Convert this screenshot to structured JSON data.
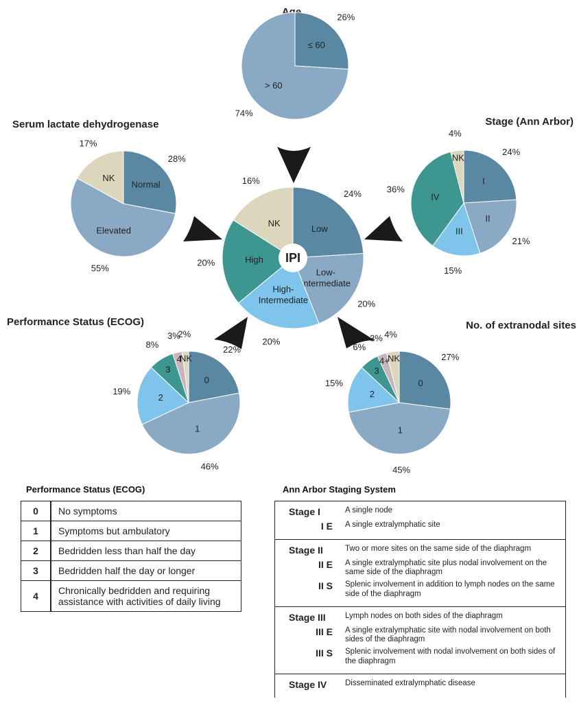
{
  "chart_data": [
    {
      "type": "pie",
      "title": "Age",
      "categories": [
        "≤ 60",
        "> 60"
      ],
      "values": [
        26,
        74
      ],
      "value_labels": [
        "26%",
        "74%"
      ],
      "colors": [
        "#5a88a3",
        "#8aa9c4"
      ]
    },
    {
      "type": "pie",
      "title": "Serum lactate dehydrogenase",
      "categories": [
        "Normal",
        "Elevated",
        "NK"
      ],
      "values": [
        28,
        55,
        17
      ],
      "value_labels": [
        "28%",
        "55%",
        "17%"
      ],
      "colors": [
        "#5a88a3",
        "#8aa9c4",
        "#dbd6bc"
      ]
    },
    {
      "type": "pie",
      "title": "Stage (Ann Arbor)",
      "categories": [
        "I",
        "II",
        "III",
        "IV",
        "NK"
      ],
      "values": [
        24,
        21,
        15,
        36,
        4
      ],
      "value_labels": [
        "24%",
        "21%",
        "15%",
        "36%",
        "4%"
      ],
      "colors": [
        "#5a88a3",
        "#8aa9c4",
        "#7fc4ea",
        "#3d9690",
        "#dbd6bc"
      ]
    },
    {
      "type": "pie",
      "center_label": "IPI",
      "categories": [
        "Low",
        "Low-Intermediate",
        "High-Intermediate",
        "High",
        "NK"
      ],
      "values": [
        24,
        20,
        20,
        20,
        16
      ],
      "value_labels": [
        "24%",
        "20%",
        "20%",
        "20%",
        "16%"
      ],
      "colors": [
        "#5a88a3",
        "#8aa9c4",
        "#7fc4ea",
        "#3d9690",
        "#dbd6bc"
      ]
    },
    {
      "type": "pie",
      "title": "Performance  Status (ECOG)",
      "categories": [
        "0",
        "1",
        "2",
        "3",
        "4",
        "NK"
      ],
      "values": [
        22,
        46,
        19,
        8,
        3,
        2
      ],
      "value_labels": [
        "22%",
        "46%",
        "19%",
        "8%",
        "3%",
        "2%"
      ],
      "colors": [
        "#5a88a3",
        "#8aa9c4",
        "#7fc4ea",
        "#3d9690",
        "#c9b3bd",
        "#dbd6bc"
      ]
    },
    {
      "type": "pie",
      "title": "No. of extranodal sites",
      "categories": [
        "0",
        "1",
        "2",
        "3",
        "4+",
        "NK"
      ],
      "values": [
        27,
        45,
        15,
        6,
        3,
        4
      ],
      "value_labels": [
        "27%",
        "45%",
        "15%",
        "6%",
        "3%",
        "4%"
      ],
      "colors": [
        "#5a88a3",
        "#8aa9c4",
        "#7fc4ea",
        "#3d9690",
        "#c9b3bd",
        "#dbd6bc"
      ]
    }
  ],
  "ps_table": {
    "title": "Performance Status (ECOG)",
    "rows": [
      [
        "0",
        "No symptoms"
      ],
      [
        "1",
        "Symptoms but ambulatory"
      ],
      [
        "2",
        "Bedridden less than half the day"
      ],
      [
        "3",
        "Bedridden half the day or longer"
      ],
      [
        "4",
        "Chronically bedridden and requiring assistance with activities of daily living"
      ]
    ]
  },
  "aa_table": {
    "title": "Ann Arbor Staging System",
    "groups": [
      [
        [
          "Stage I",
          "A single node"
        ],
        [
          "I E",
          "A single extralymphatic site"
        ]
      ],
      [
        [
          "Stage II",
          "Two or more sites on the same side of the diaphragm"
        ],
        [
          "II E",
          "A single extralymphatic site plus nodal involvement on the same side of the diaphragm"
        ],
        [
          "II S",
          "Splenic involvement in addition to lymph nodes on the same side of the diaphragm"
        ]
      ],
      [
        [
          "Stage III",
          "Lymph nodes on both sides of the diaphragm"
        ],
        [
          "III E",
          "A single extralymphatic site with nodal involvement on both sides of the diaphragm"
        ],
        [
          "III S",
          "Splenic involvement with nodal involvement on both sides of the diaphragm"
        ]
      ],
      [
        [
          "Stage IV",
          "Disseminated extralymphatic disease"
        ]
      ]
    ]
  }
}
